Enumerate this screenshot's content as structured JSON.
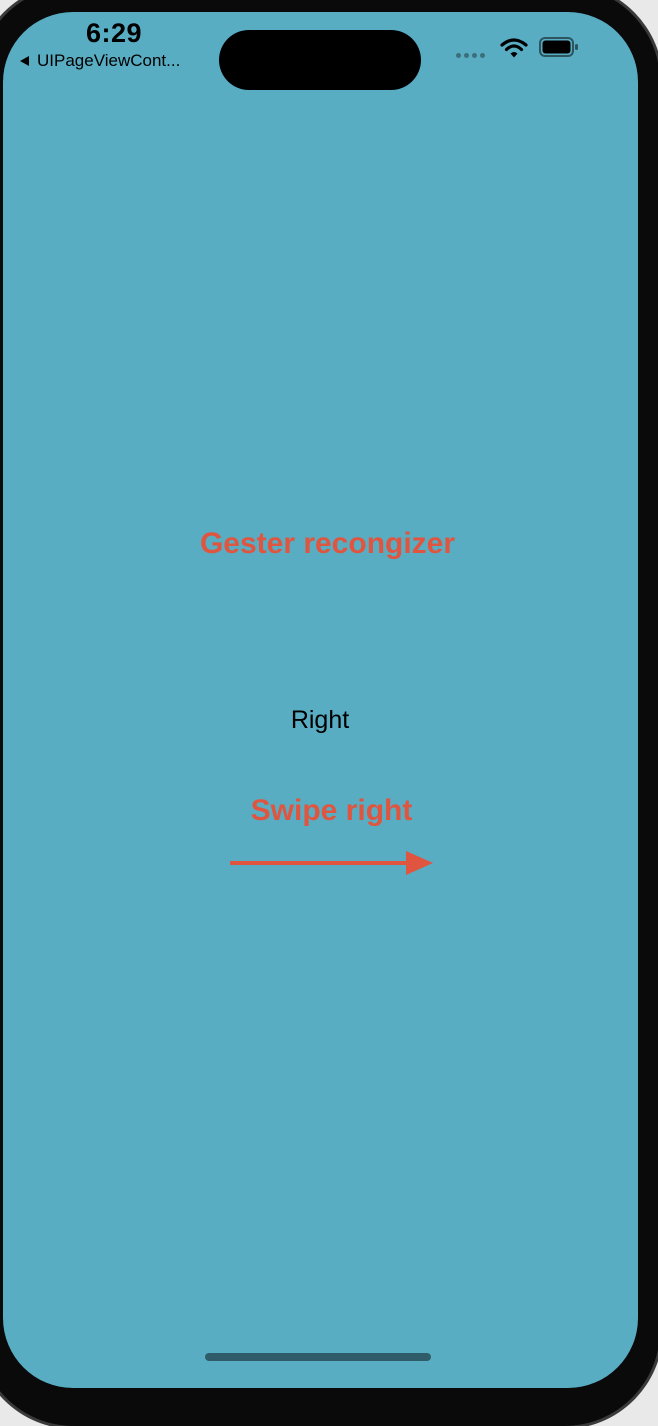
{
  "status_bar": {
    "time": "6:29",
    "back_label": "UIPageViewCont...",
    "icons": [
      "signal-dots-icon",
      "wifi-icon",
      "battery-icon"
    ]
  },
  "content": {
    "title": "Gester recongizer",
    "direction_label": "Right",
    "swipe_label": "Swipe right",
    "arrow_icon": "right-arrow-icon"
  },
  "colors": {
    "background": "#58adc3",
    "accent": "#e0553f",
    "text": "#000000"
  }
}
